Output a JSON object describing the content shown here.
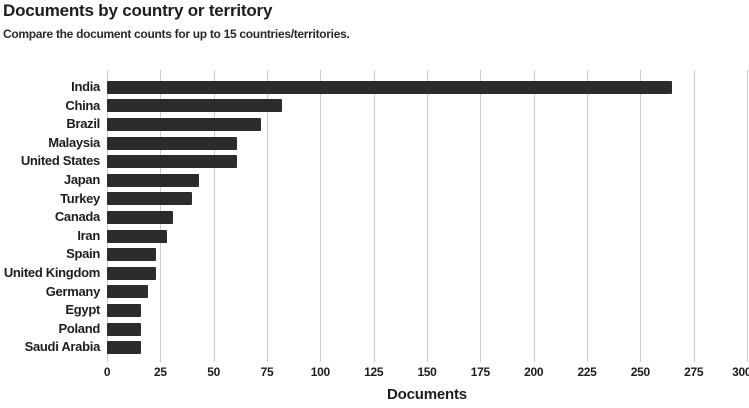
{
  "header": {
    "title": "Documents by country or territory",
    "subtitle": "Compare the document counts for up to 15 countries/territories."
  },
  "chart_data": {
    "type": "bar",
    "orientation": "horizontal",
    "title": "Documents by country or territory",
    "subtitle": "Compare the document counts for up to 15 countries/territories.",
    "categories": [
      "India",
      "China",
      "Brazil",
      "Malaysia",
      "United States",
      "Japan",
      "Turkey",
      "Canada",
      "Iran",
      "Spain",
      "United Kingdom",
      "Germany",
      "Egypt",
      "Poland",
      "Saudi Arabia"
    ],
    "values": [
      265,
      82,
      72,
      61,
      61,
      43,
      40,
      31,
      28,
      23,
      23,
      19,
      16,
      16,
      16
    ],
    "xlabel": "Documents",
    "ylabel": "",
    "xlim": [
      0,
      300
    ],
    "xticks": [
      0,
      25,
      50,
      75,
      100,
      125,
      150,
      175,
      200,
      225,
      250,
      275,
      300
    ],
    "grid": true,
    "legend": "none",
    "bar_color": "#2b2b2b",
    "gridline_color": "#cbcbcb"
  }
}
